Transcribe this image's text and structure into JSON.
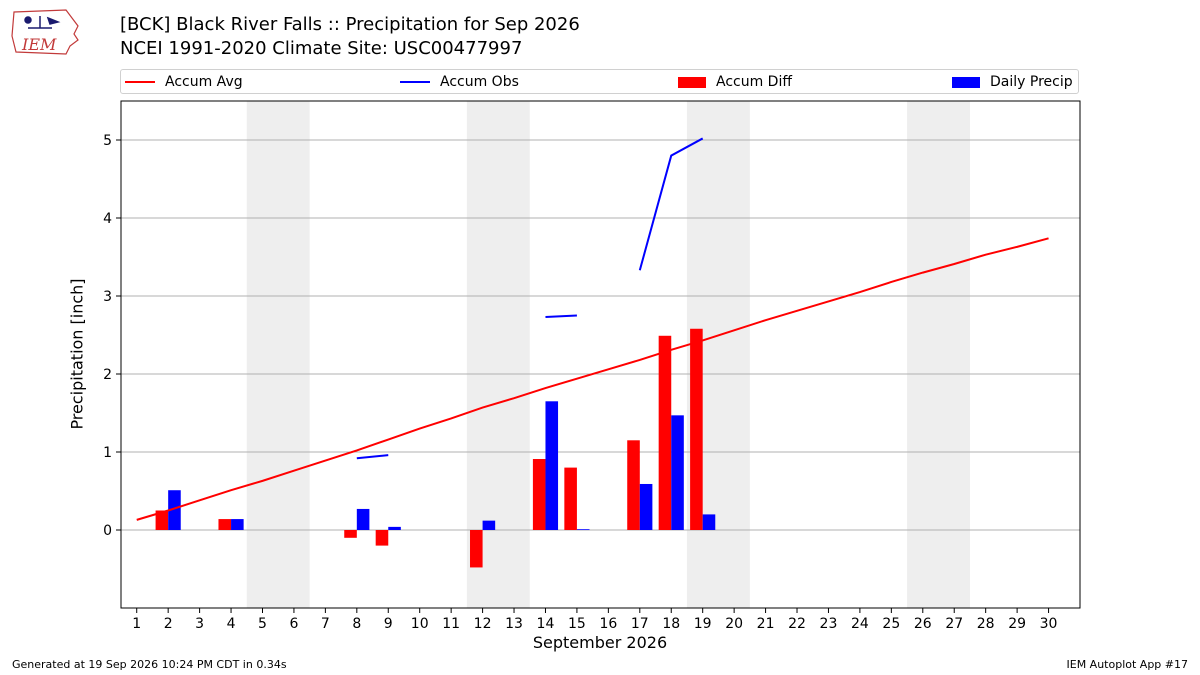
{
  "header": {
    "title_line1": "[BCK] Black River Falls :: Precipitation for Sep 2026",
    "title_line2": "NCEI 1991-2020 Climate Site: USC00477997",
    "logo_text": "IEM"
  },
  "footer": {
    "generated": "Generated at 19 Sep 2026 10:24 PM CDT in 0.34s",
    "app": "IEM Autoplot App #17"
  },
  "colors": {
    "avg": "#ff0000",
    "obs": "#0000ff",
    "diff": "#ff0000",
    "daily": "#0000ff",
    "weekend_shade": "#eeeeee",
    "grid": "#b0b0b0"
  },
  "chart_data": {
    "type": "bar",
    "xlabel": "September 2026",
    "ylabel": "Precipitation [inch]",
    "xlim": [
      0.5,
      31.0
    ],
    "ylim": [
      -1.0,
      5.5
    ],
    "x_ticks": [
      1,
      2,
      3,
      4,
      5,
      6,
      7,
      8,
      9,
      10,
      11,
      12,
      13,
      14,
      15,
      16,
      17,
      18,
      19,
      20,
      21,
      22,
      23,
      24,
      25,
      26,
      27,
      28,
      29,
      30
    ],
    "y_ticks": [
      0,
      1,
      2,
      3,
      4,
      5
    ],
    "grid": "horizontal",
    "legend_position": "top",
    "weekend_days": [
      [
        5,
        6
      ],
      [
        12,
        13
      ],
      [
        19,
        20
      ],
      [
        26,
        27
      ]
    ],
    "series": [
      {
        "name": "Accum Avg",
        "type": "line",
        "x": [
          1,
          2,
          3,
          4,
          5,
          6,
          7,
          8,
          9,
          10,
          11,
          12,
          13,
          14,
          15,
          16,
          17,
          18,
          19,
          20,
          21,
          22,
          23,
          24,
          25,
          26,
          27,
          28,
          29,
          30
        ],
        "values": [
          0.13,
          0.25,
          0.38,
          0.51,
          0.63,
          0.76,
          0.89,
          1.02,
          1.16,
          1.3,
          1.43,
          1.57,
          1.69,
          1.82,
          1.94,
          2.06,
          2.18,
          2.31,
          2.43,
          2.56,
          2.69,
          2.81,
          2.93,
          3.05,
          3.18,
          3.3,
          3.41,
          3.53,
          3.63,
          3.74
        ]
      },
      {
        "name": "Accum Obs",
        "type": "line",
        "segments": [
          {
            "x": [
              8,
              9
            ],
            "values": [
              0.92,
              0.96
            ]
          },
          {
            "x": [
              14,
              15
            ],
            "values": [
              2.73,
              2.75
            ]
          },
          {
            "x": [
              17,
              18,
              19
            ],
            "values": [
              3.33,
              4.8,
              5.02
            ]
          }
        ]
      },
      {
        "name": "Accum Diff",
        "type": "bar",
        "x": [
          2,
          4,
          8,
          9,
          12,
          14,
          15,
          17,
          18,
          19
        ],
        "values": [
          0.25,
          0.14,
          -0.1,
          -0.2,
          -0.48,
          0.91,
          0.8,
          1.15,
          2.49,
          2.58
        ]
      },
      {
        "name": "Daily Precip",
        "type": "bar",
        "x": [
          2,
          4,
          8,
          9,
          12,
          14,
          15,
          17,
          18,
          19
        ],
        "values": [
          0.51,
          0.14,
          0.27,
          0.04,
          0.12,
          1.65,
          0.01,
          0.59,
          1.47,
          0.2
        ]
      }
    ]
  }
}
